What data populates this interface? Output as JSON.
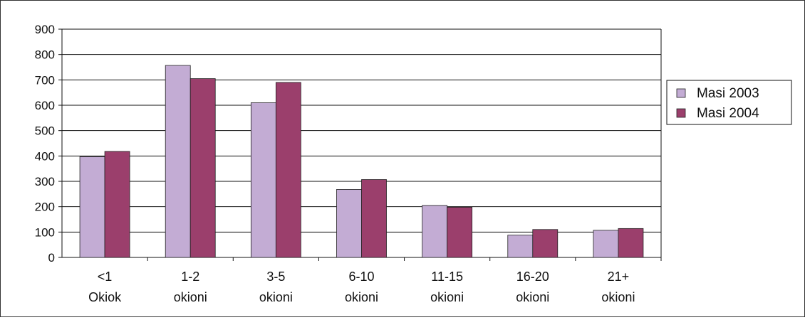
{
  "chart_data": {
    "type": "bar",
    "categories": [
      [
        "<1",
        "Okiok"
      ],
      [
        "1-2",
        "okioni"
      ],
      [
        "3-5",
        "okioni"
      ],
      [
        "6-10",
        "okioni"
      ],
      [
        "11-15",
        "okioni"
      ],
      [
        "16-20",
        "okioni"
      ],
      [
        "21+",
        "okioni"
      ]
    ],
    "series": [
      {
        "name": "Masi 2003",
        "values": [
          397,
          757,
          610,
          268,
          205,
          88,
          107
        ],
        "color": "#c3acd4"
      },
      {
        "name": "Masi 2004",
        "values": [
          418,
          705,
          690,
          307,
          198,
          110,
          114
        ],
        "color": "#9b3f6c"
      }
    ],
    "ylim": [
      0,
      900
    ],
    "yticks": [
      0,
      100,
      200,
      300,
      400,
      500,
      600,
      700,
      800,
      900
    ],
    "grid": true,
    "legend_position": "right",
    "title": "",
    "xlabel": "",
    "ylabel": ""
  }
}
